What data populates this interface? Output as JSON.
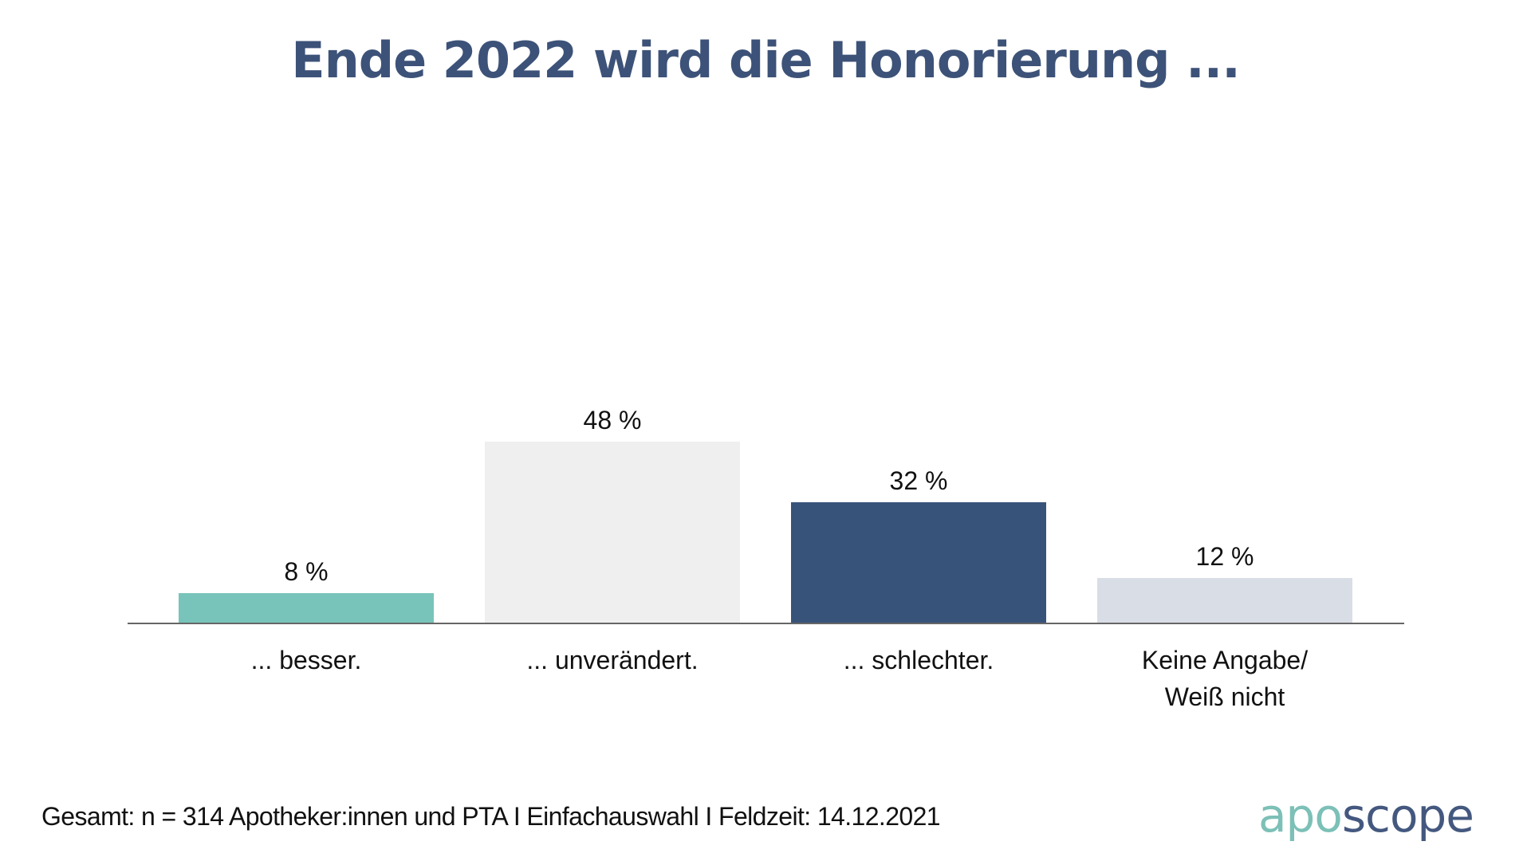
{
  "chart_data": {
    "type": "bar",
    "title": "Ende 2022 wird die Honorierung ...",
    "xlabel": "",
    "ylabel": "",
    "ylim": [
      0,
      100
    ],
    "grid": false,
    "legend": "none",
    "unit": "%",
    "categories": [
      [
        "... besser."
      ],
      [
        "... unverändert."
      ],
      [
        "... schlechter."
      ],
      [
        "Keine Angabe/",
        "Weiß nicht"
      ]
    ],
    "values": [
      8,
      48,
      32,
      12
    ],
    "value_labels": [
      "8 %",
      "48 %",
      "32 %",
      "12 %"
    ],
    "colors": [
      "#78c4ba",
      "#efefef",
      "#38537a",
      "#d9dde5"
    ],
    "axis_color": "#666666"
  },
  "footer": {
    "note": "Gesamt: n = 314 Apotheker:innen und PTA I Einfachauswahl I Feldzeit: 14.12.2021"
  },
  "logo": {
    "part1": "apo",
    "part2": "scope",
    "color1": "#7cc0b7",
    "color2": "#44587f"
  }
}
